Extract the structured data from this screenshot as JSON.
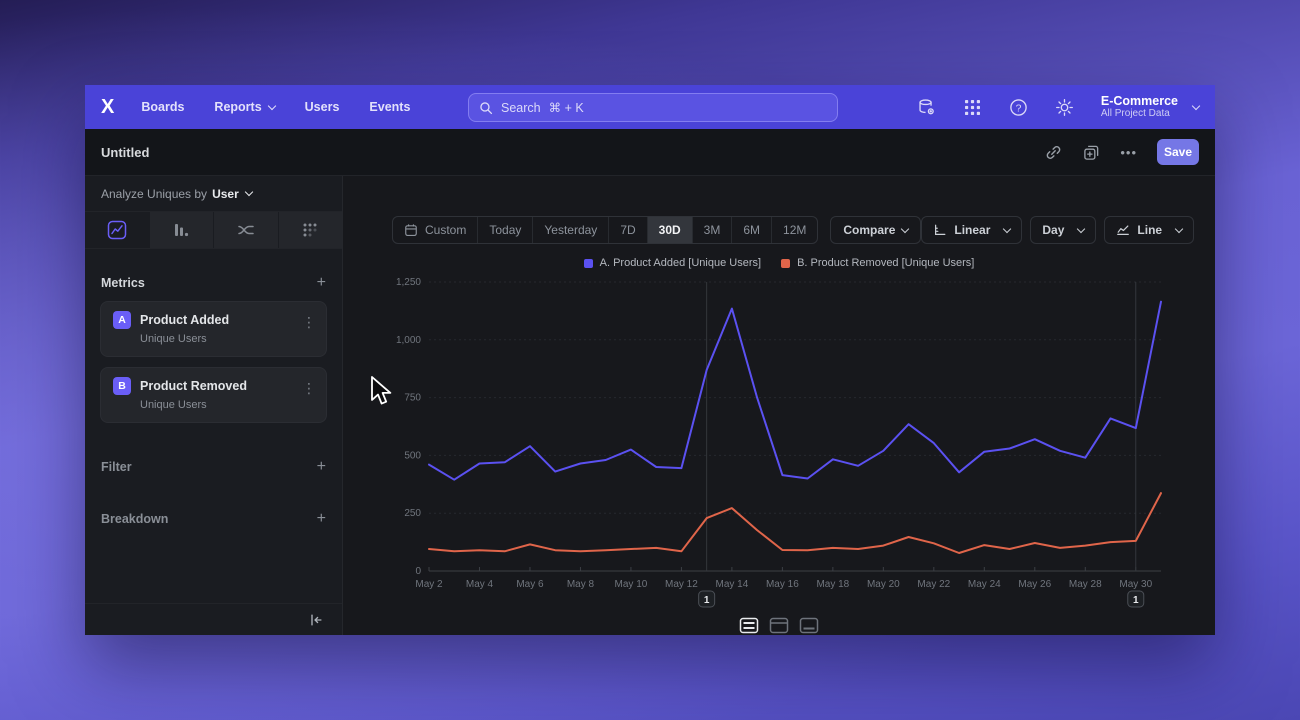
{
  "topbar": {
    "nav_items": [
      "Boards",
      "Reports",
      "Users",
      "Events"
    ],
    "search": {
      "label": "Search",
      "shortcut": "⌘ + K"
    },
    "project": {
      "name": "E-Commerce",
      "scope": "All Project Data"
    }
  },
  "reportbar": {
    "title": "Untitled",
    "save_label": "Save"
  },
  "sidebar": {
    "analyze_label": "Analyze Uniques by",
    "analyze_value": "User",
    "metrics_label": "Metrics",
    "metrics": [
      {
        "badge": "A",
        "name": "Product Added",
        "subtitle": "Unique Users"
      },
      {
        "badge": "B",
        "name": "Product Removed",
        "subtitle": "Unique Users"
      }
    ],
    "filter_label": "Filter",
    "breakdown_label": "Breakdown"
  },
  "controls": {
    "ranges": [
      "Custom",
      "Today",
      "Yesterday",
      "7D",
      "30D",
      "3M",
      "6M",
      "12M"
    ],
    "selected_range": "30D",
    "compare_label": "Compare",
    "scale_label": "Linear",
    "interval_label": "Day",
    "chart_type_label": "Line"
  },
  "icons": {
    "plus": "+",
    "kebab": "⋮",
    "ellipsis": "•••"
  },
  "chart_data": {
    "type": "line",
    "x": [
      "May 2",
      "May 3",
      "May 4",
      "May 5",
      "May 6",
      "May 7",
      "May 8",
      "May 9",
      "May 10",
      "May 11",
      "May 12",
      "May 13",
      "May 14",
      "May 15",
      "May 16",
      "May 17",
      "May 18",
      "May 19",
      "May 20",
      "May 21",
      "May 22",
      "May 23",
      "May 24",
      "May 25",
      "May 26",
      "May 27",
      "May 28",
      "May 29",
      "May 30",
      "May 31"
    ],
    "x_label_step": 2,
    "ylim": [
      0,
      1250
    ],
    "y_ticks": [
      {
        "value": 0,
        "label": "0"
      },
      {
        "value": 250,
        "label": "250"
      },
      {
        "value": 500,
        "label": "500"
      },
      {
        "value": 750,
        "label": "750"
      },
      {
        "value": 1000,
        "label": "1,000"
      },
      {
        "value": 1250,
        "label": "1,250"
      }
    ],
    "series": [
      {
        "name": "Product Added",
        "legend": "A. Product Added [Unique Users]",
        "color": "#5b51f1",
        "values": [
          460,
          395,
          465,
          470,
          540,
          430,
          465,
          480,
          525,
          450,
          445,
          870,
          1135,
          750,
          415,
          400,
          483,
          455,
          520,
          635,
          553,
          427,
          516,
          530,
          570,
          520,
          490,
          660,
          618,
          1165
        ]
      },
      {
        "name": "Product Removed",
        "legend": "B. Product Removed [Unique Users]",
        "color": "#e0654a",
        "values": [
          95,
          85,
          90,
          85,
          115,
          90,
          85,
          90,
          95,
          100,
          85,
          229,
          272,
          177,
          91,
          90,
          100,
          95,
          110,
          147,
          120,
          78,
          112,
          95,
          121,
          100,
          110,
          125,
          130,
          337
        ]
      }
    ],
    "annotations": [
      {
        "x_index": 11,
        "label": "1"
      },
      {
        "x_index": 28,
        "label": "1"
      }
    ],
    "grid": "horizontal-dashed",
    "legend_position": "top-center"
  }
}
